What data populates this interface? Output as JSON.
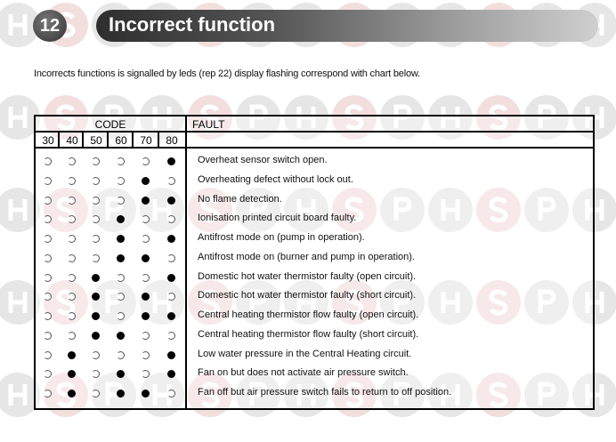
{
  "header": {
    "number": "12",
    "title": "Incorrect function"
  },
  "intro": "Incorrects functions is signalled by leds (rep 22) display flashing correspond with chart below.",
  "table": {
    "code_header": "CODE",
    "fault_header": "FAULT",
    "code_columns": [
      "30",
      "40",
      "50",
      "60",
      "70",
      "80"
    ],
    "rows": [
      {
        "leds": [
          0,
          0,
          0,
          0,
          0,
          1
        ],
        "fault": "Overheat sensor switch open."
      },
      {
        "leds": [
          0,
          0,
          0,
          0,
          1,
          0
        ],
        "fault": "Overheating defect without lock out."
      },
      {
        "leds": [
          0,
          0,
          0,
          0,
          1,
          1
        ],
        "fault": " No flame detection."
      },
      {
        "leds": [
          0,
          0,
          0,
          1,
          0,
          0
        ],
        "fault": "Ionisation printed circuit board faulty."
      },
      {
        "leds": [
          0,
          0,
          0,
          1,
          0,
          1
        ],
        "fault": "Antifrost mode on (pump in operation)."
      },
      {
        "leds": [
          0,
          0,
          0,
          1,
          1,
          0
        ],
        "fault": "Antifrost mode on (burner and pump in operation)."
      },
      {
        "leds": [
          0,
          0,
          1,
          0,
          0,
          1
        ],
        "fault": "Domestic hot water thermistor faulty (open circuit)."
      },
      {
        "leds": [
          0,
          0,
          1,
          0,
          1,
          0
        ],
        "fault": "Domestic hot water thermistor faulty (short circuit)."
      },
      {
        "leds": [
          0,
          0,
          1,
          0,
          1,
          1
        ],
        "fault": "Central heating thermistor flow faulty (open circuit)."
      },
      {
        "leds": [
          0,
          0,
          1,
          1,
          0,
          0
        ],
        "fault": "Central heating thermistor flow faulty (short circuit)."
      },
      {
        "leds": [
          0,
          1,
          0,
          0,
          0,
          1
        ],
        "fault": "Low water pressure in the Central Heating circuit."
      },
      {
        "leds": [
          0,
          1,
          0,
          1,
          0,
          1
        ],
        "fault": "Fan on but does not activate air pressure switch."
      },
      {
        "leds": [
          0,
          1,
          0,
          1,
          1,
          0
        ],
        "fault": "Fan off but air pressure switch fails to return to off position."
      }
    ]
  },
  "watermark": {
    "letters": [
      "H",
      "S",
      "P"
    ],
    "colors": {
      "pink": "#f3dede",
      "grey": "#e6e6e6"
    }
  }
}
